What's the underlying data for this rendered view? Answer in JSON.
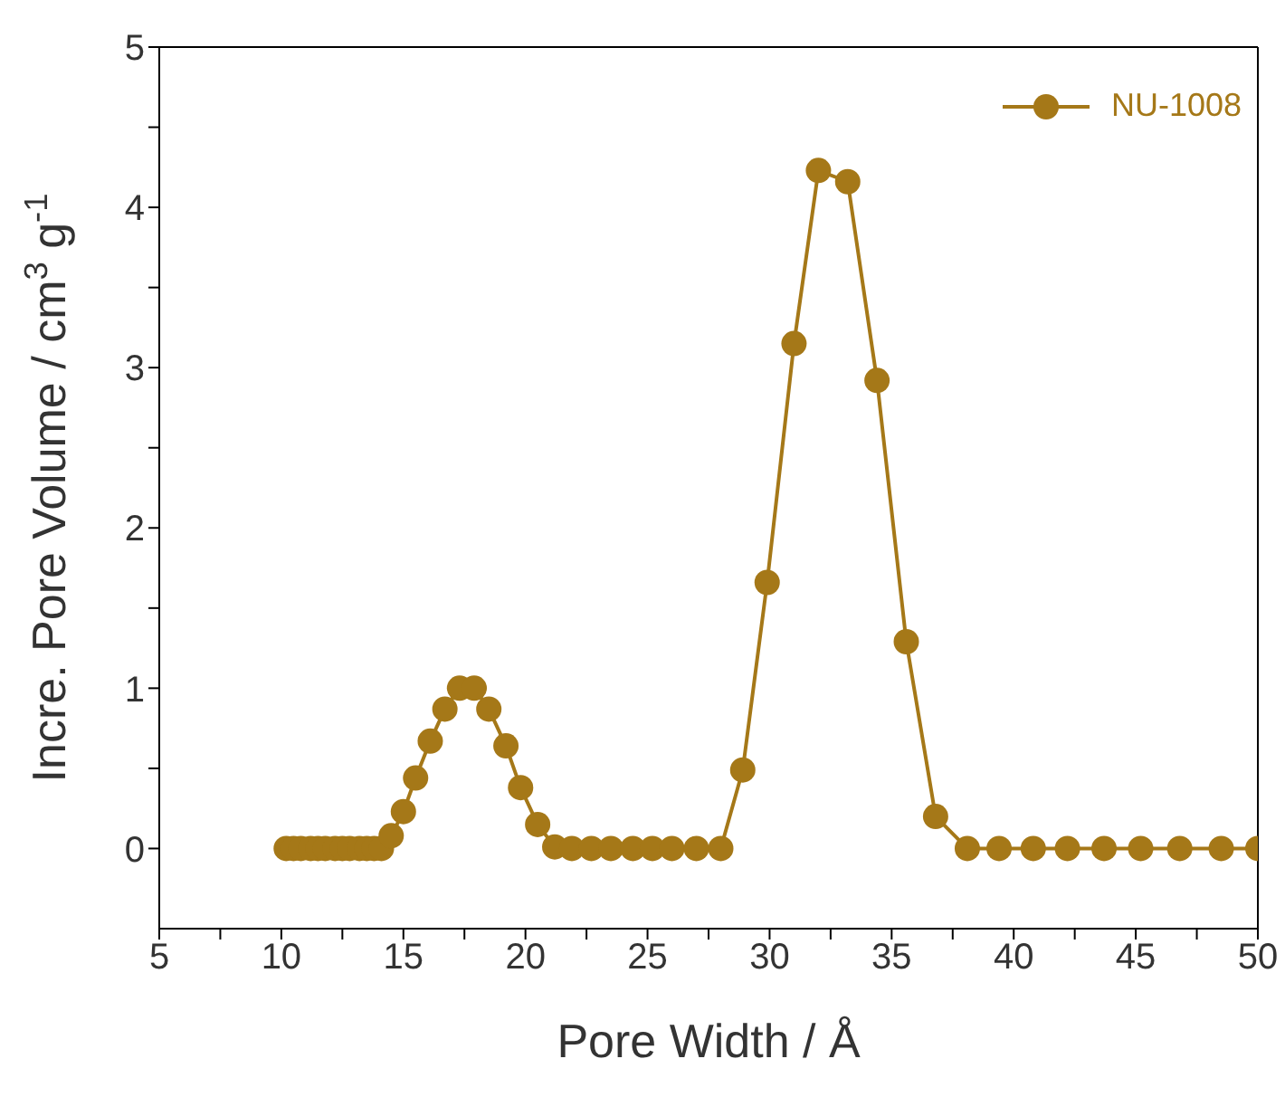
{
  "chart_data": {
    "type": "line",
    "xlabel": "Pore Width / Å",
    "ylabel": "Incre. Pore Volume / cm$^{3}$ g$^{-1}$",
    "x": [
      10.2,
      10.5,
      10.8,
      11.2,
      11.5,
      11.8,
      12.2,
      12.5,
      12.8,
      13.2,
      13.5,
      13.8,
      14.1,
      14.5,
      15.0,
      15.5,
      16.1,
      16.7,
      17.3,
      17.9,
      18.5,
      19.2,
      19.8,
      20.5,
      21.2,
      21.9,
      22.7,
      23.5,
      24.4,
      25.2,
      26.0,
      27.0,
      28.0,
      28.9,
      29.9,
      31.0,
      32.0,
      33.2,
      34.4,
      35.6,
      36.8,
      38.1,
      39.4,
      40.8,
      42.2,
      43.7,
      45.2,
      46.8,
      48.5,
      50.0
    ],
    "series": [
      {
        "name": "NU-1008",
        "color": "#a57818",
        "values": [
          0,
          0,
          0,
          0,
          0,
          0,
          0,
          0,
          0,
          0,
          0,
          0,
          0,
          0.08,
          0.23,
          0.44,
          0.67,
          0.87,
          1.0,
          1.0,
          0.87,
          0.64,
          0.38,
          0.15,
          0.01,
          0,
          0,
          0,
          0,
          0,
          0,
          0,
          0,
          0.49,
          1.66,
          3.15,
          4.23,
          4.16,
          2.92,
          1.29,
          0.2,
          0,
          0,
          0,
          0,
          0,
          0,
          0,
          0,
          0
        ]
      }
    ],
    "xlim": [
      5,
      50
    ],
    "ylim": [
      -0.5,
      5
    ],
    "xticks": [
      5,
      {
        "value": 7.5,
        "label": null
      },
      10,
      {
        "value": 12.5,
        "label": null
      },
      15,
      {
        "value": 17.5,
        "label": null
      },
      20,
      {
        "value": 22.5,
        "label": null
      },
      25,
      {
        "value": 27.5,
        "label": null
      },
      30,
      {
        "value": 32.5,
        "label": null
      },
      35,
      {
        "value": 37.5,
        "label": null
      },
      40,
      {
        "value": 42.5,
        "label": null
      },
      45,
      {
        "value": 47.5,
        "label": null
      },
      50
    ],
    "yticks": [
      0,
      {
        "value": 0.5,
        "label": null
      },
      1,
      {
        "value": 1.5,
        "label": null
      },
      2,
      {
        "value": 2.5,
        "label": null
      },
      3,
      {
        "value": 3.5,
        "label": null
      },
      4,
      {
        "value": 4.5,
        "label": null
      },
      5
    ],
    "legend": "top right",
    "marker": "circle",
    "line_style": "solid",
    "grid": false
  }
}
